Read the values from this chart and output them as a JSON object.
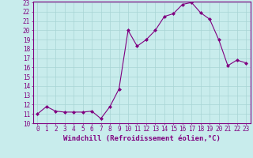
{
  "x": [
    0,
    1,
    2,
    3,
    4,
    5,
    6,
    7,
    8,
    9,
    10,
    11,
    12,
    13,
    14,
    15,
    16,
    17,
    18,
    19,
    20,
    21,
    22,
    23
  ],
  "y": [
    11.0,
    11.8,
    11.3,
    11.2,
    11.2,
    11.2,
    11.3,
    10.5,
    11.8,
    13.7,
    20.0,
    18.3,
    19.0,
    20.0,
    21.5,
    21.8,
    22.8,
    23.0,
    21.9,
    21.2,
    19.0,
    16.2,
    16.8,
    16.5
  ],
  "line_color": "#800080",
  "marker_color": "#800080",
  "bg_color": "#c8ecec",
  "grid_color": "#a8d4d4",
  "xlabel": "Windchill (Refroidissement éolien,°C)",
  "ylim": [
    10,
    23
  ],
  "xlim": [
    -0.5,
    23.5
  ],
  "yticks": [
    10,
    11,
    12,
    13,
    14,
    15,
    16,
    17,
    18,
    19,
    20,
    21,
    22,
    23
  ],
  "xticks": [
    0,
    1,
    2,
    3,
    4,
    5,
    6,
    7,
    8,
    9,
    10,
    11,
    12,
    13,
    14,
    15,
    16,
    17,
    18,
    19,
    20,
    21,
    22,
    23
  ],
  "tick_fontsize": 5.5,
  "xlabel_fontsize": 6.5
}
